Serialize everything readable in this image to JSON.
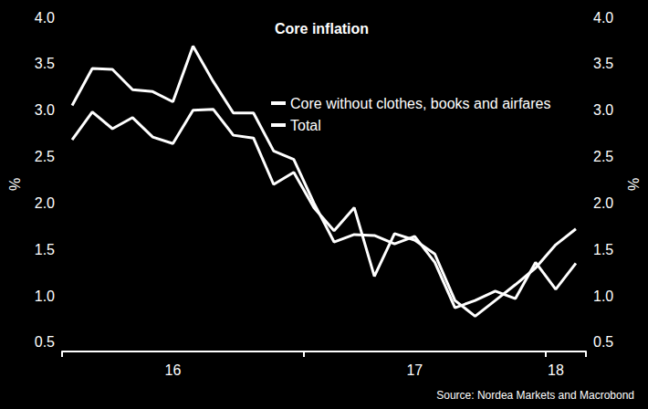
{
  "chart_data": {
    "type": "line",
    "title": "Core inflation",
    "source": "Source: Nordea Markets and Macrobond",
    "y_label": "%",
    "y2_label": "%",
    "categories": [
      null,
      null,
      null,
      null,
      null,
      "16",
      null,
      null,
      null,
      null,
      null,
      null,
      null,
      null,
      null,
      null,
      null,
      "17",
      null,
      null,
      null,
      null,
      null,
      null,
      "18",
      null
    ],
    "series": [
      {
        "name": "Core without clothes, books and airfares",
        "color": "#ffffff",
        "values": [
          3.05,
          3.45,
          3.44,
          3.22,
          3.2,
          3.09,
          3.69,
          3.31,
          2.97,
          2.97,
          2.56,
          2.47,
          2.0,
          1.58,
          1.66,
          1.65,
          1.56,
          1.64,
          1.36,
          0.87,
          0.95,
          1.05,
          0.97,
          1.36,
          1.07,
          1.35
        ]
      },
      {
        "name": "Total",
        "color": "#ffffff",
        "values": [
          2.68,
          2.98,
          2.8,
          2.92,
          2.71,
          2.64,
          3.0,
          3.01,
          2.73,
          2.7,
          2.2,
          2.33,
          1.95,
          1.7,
          1.95,
          1.21,
          1.67,
          1.6,
          1.45,
          0.95,
          0.78,
          0.95,
          1.12,
          1.3,
          1.55,
          1.72
        ]
      }
    ],
    "ylim": [
      0.4,
      4.0
    ],
    "yticks": [
      0.5,
      1.0,
      1.5,
      2.0,
      2.5,
      3.0,
      3.5,
      4.0
    ],
    "y2lim": [
      0.4,
      4.0
    ],
    "y2ticks": [
      0.5,
      1.0,
      1.5,
      2.0,
      2.5,
      3.0,
      3.5,
      4.0
    ],
    "grid": false,
    "legend": "top"
  }
}
